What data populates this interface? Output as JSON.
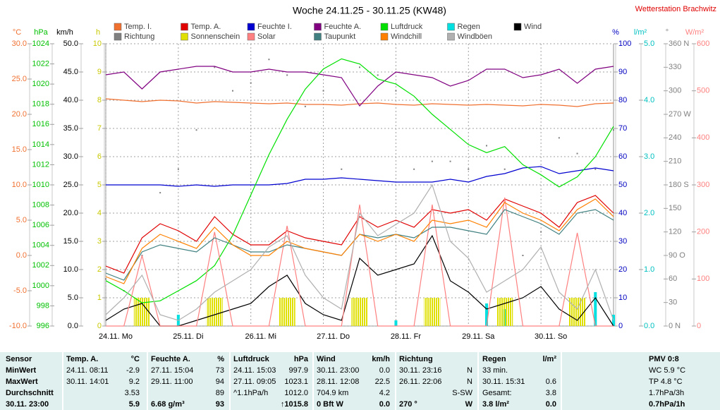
{
  "chart_data": {
    "type": "line",
    "title": "Woche 24.11.25 - 30.11.25 (KW48)",
    "annotation": "Wetterstation Brachwitz",
    "x": [
      0,
      6,
      12,
      18,
      24,
      30,
      36,
      42,
      48,
      54,
      60,
      66,
      72,
      78,
      84,
      90,
      96,
      102,
      108,
      114,
      120,
      126,
      132,
      138,
      144,
      150,
      156,
      162,
      168
    ],
    "xlim": [
      0,
      168
    ],
    "xticks": [
      {
        "value": 0,
        "label": "24.11. Mo"
      },
      {
        "value": 24,
        "label": "25.11. Di"
      },
      {
        "value": 48,
        "label": "26.11. Mi"
      },
      {
        "value": 72,
        "label": "27.11. Do"
      },
      {
        "value": 96,
        "label": "28.11. Fr"
      },
      {
        "value": 120,
        "label": "29.11. Sa"
      },
      {
        "value": 144,
        "label": "30.11. So"
      }
    ],
    "axes": [
      {
        "label": "°C",
        "color": "#f07030",
        "side": "left",
        "ylim": [
          -10,
          30
        ],
        "yticks": [
          {
            "value": -10,
            "label": "-10.0"
          },
          {
            "value": -5,
            "label": "-5.0"
          },
          {
            "value": 0,
            "label": "0.0"
          },
          {
            "value": 5,
            "label": "5.0"
          },
          {
            "value": 10,
            "label": "10.0"
          },
          {
            "value": 15,
            "label": "15.0"
          },
          {
            "value": 20,
            "label": "20.0"
          },
          {
            "value": 25,
            "label": "25.0"
          },
          {
            "value": 30,
            "label": "30.0"
          }
        ]
      },
      {
        "label": "hPa",
        "color": "#00c000",
        "side": "left",
        "ylim": [
          996,
          1024
        ],
        "yticks": [
          996,
          998,
          1000,
          1002,
          1004,
          1006,
          1008,
          1010,
          1012,
          1014,
          1016,
          1018,
          1020,
          1022,
          1024
        ]
      },
      {
        "label": "km/h",
        "color": "#000000",
        "side": "left",
        "grid": true,
        "ylim": [
          0,
          50
        ],
        "yticks": [
          {
            "value": 0,
            "label": "0.0"
          },
          {
            "value": 5,
            "label": "5.0"
          },
          {
            "value": 10,
            "label": "10.0"
          },
          {
            "value": 15,
            "label": "15.0"
          },
          {
            "value": 20,
            "label": "20.0"
          },
          {
            "value": 25,
            "label": "25.0"
          },
          {
            "value": 30,
            "label": "30.0"
          },
          {
            "value": 35,
            "label": "35.0"
          },
          {
            "value": 40,
            "label": "40.0"
          },
          {
            "value": 45,
            "label": "45.0"
          },
          {
            "value": 50,
            "label": "50.0"
          }
        ]
      },
      {
        "label": "h",
        "color": "#c8c800",
        "side": "left",
        "ylim": [
          0,
          10
        ],
        "yticks": [
          0,
          1,
          2,
          3,
          4,
          5,
          6,
          7,
          8,
          9,
          10
        ]
      },
      {
        "label": "%",
        "color": "#0000c0",
        "side": "right",
        "ylim": [
          0,
          100
        ],
        "yticks": [
          0,
          10,
          20,
          30,
          40,
          50,
          60,
          70,
          80,
          90,
          100
        ]
      },
      {
        "label": "l/m²",
        "color": "#00c0c0",
        "side": "right",
        "ylim": [
          0,
          5
        ],
        "yticks": [
          {
            "value": 0,
            "label": "0.0"
          },
          {
            "value": 1,
            "label": "1.0"
          },
          {
            "value": 2,
            "label": "2.0"
          },
          {
            "value": 3,
            "label": "3.0"
          },
          {
            "value": 4,
            "label": "4.0"
          },
          {
            "value": 5,
            "label": "5.0"
          }
        ]
      },
      {
        "label": "°",
        "color": "#808080",
        "side": "right",
        "ylim": [
          0,
          360
        ],
        "yticks": [
          {
            "value": 0,
            "label": "0 N"
          },
          30,
          60,
          {
            "value": 90,
            "label": "90 O"
          },
          120,
          150,
          {
            "value": 180,
            "label": "180 S"
          },
          210,
          240,
          {
            "value": 270,
            "label": "270 W"
          },
          300,
          330,
          {
            "value": 360,
            "label": "360 N"
          }
        ]
      },
      {
        "label": "W/m²",
        "color": "#ff8080",
        "side": "right",
        "ylim": [
          0,
          600
        ],
        "yticks": [
          0,
          100,
          200,
          300,
          400,
          500,
          600
        ]
      }
    ],
    "series": [
      {
        "name": "Temp. I.",
        "color": "#f07030",
        "axis": 0,
        "type": "line",
        "values": [
          22.2,
          22,
          21.8,
          22,
          21.9,
          21.6,
          21.8,
          21.7,
          21.6,
          21.5,
          21.6,
          21.4,
          21.4,
          21.3,
          21.5,
          21.6,
          21.4,
          21.3,
          21.5,
          21.4,
          21.3,
          21.4,
          21.3,
          21.2,
          21.4,
          21.3,
          21.1,
          21.5,
          21.6
        ]
      },
      {
        "name": "Temp. A.",
        "color": "#e00000",
        "axis": 0,
        "type": "line",
        "values": [
          -1.5,
          -2.5,
          2.5,
          4.5,
          3.5,
          2,
          5.5,
          3,
          1.5,
          1.5,
          3.5,
          2.5,
          2,
          1.5,
          5.5,
          4,
          5,
          4,
          6.5,
          6,
          6.5,
          5,
          8,
          7,
          6,
          4,
          7.5,
          8.5,
          6
        ]
      },
      {
        "name": "Feuchte I.",
        "color": "#0000d0",
        "axis": 4,
        "type": "line",
        "values": [
          50,
          50,
          50,
          50,
          49.5,
          50,
          49.5,
          50,
          50,
          50,
          50.5,
          52,
          52,
          52.5,
          52,
          51.5,
          51,
          51,
          51,
          52,
          51,
          53,
          54,
          56,
          56.5,
          54,
          55,
          56,
          55
        ]
      },
      {
        "name": "Feuchte A.",
        "color": "#800080",
        "axis": 4,
        "type": "line",
        "values": [
          89,
          90,
          84,
          90,
          91,
          92,
          92,
          90,
          90,
          91,
          90,
          90,
          89,
          88,
          78,
          85,
          90,
          89,
          88,
          85,
          87,
          91,
          91,
          88,
          89,
          91,
          86,
          91,
          92
        ]
      },
      {
        "name": "Luftdruck",
        "color": "#00e000",
        "axis": 1,
        "type": "line",
        "values": [
          1000.5,
          999.5,
          998.3,
          998.5,
          999.5,
          1000.5,
          1002,
          1005,
          1009,
          1013,
          1016.5,
          1019.5,
          1021.5,
          1022.5,
          1022,
          1020.5,
          1020,
          1018.8,
          1017,
          1015.5,
          1014,
          1013.2,
          1013.8,
          1012,
          1011,
          1009.8,
          1010.8,
          1012.8,
          1015.8
        ]
      },
      {
        "name": "Regen",
        "color": "#00e0e0",
        "axis": 5,
        "type": "bar",
        "values": [
          0,
          0,
          0,
          0,
          0.2,
          0,
          0,
          0,
          0,
          0,
          0,
          0,
          0,
          0,
          0,
          0,
          0.1,
          0,
          0,
          0,
          0,
          0.4,
          0.3,
          0,
          0,
          0,
          0,
          0.6,
          0.2
        ]
      },
      {
        "name": "Wind",
        "color": "#000000",
        "axis": 2,
        "type": "line",
        "values": [
          1,
          3,
          4,
          0,
          0,
          1,
          2,
          3,
          4,
          7,
          9,
          4,
          2,
          1,
          12,
          9,
          10,
          11,
          16,
          8,
          6,
          3,
          4,
          5,
          7,
          3,
          1,
          5,
          0
        ]
      },
      {
        "name": "Richtung",
        "color": "#808080",
        "axis": 6,
        "type": "scatter",
        "values": [
          60,
          45,
          90,
          170,
          200,
          250,
          330,
          300,
          310,
          340,
          320,
          280,
          300,
          200,
          330,
          320,
          300,
          200,
          210,
          210,
          200,
          230,
          200,
          90,
          120,
          240,
          220,
          200,
          250
        ]
      },
      {
        "name": "Sonnenschein",
        "color": "#e0e000",
        "axis": 3,
        "type": "bar",
        "hatch": true,
        "values": [
          0,
          0,
          1,
          0,
          0,
          0,
          1,
          0,
          0,
          0,
          1,
          0,
          0,
          0,
          1,
          0,
          0,
          0,
          1,
          0,
          0,
          0,
          1,
          0,
          0,
          0,
          1,
          0,
          0
        ]
      },
      {
        "name": "Solar",
        "color": "#ff8080",
        "axis": 7,
        "type": "line",
        "values": [
          0,
          0,
          150,
          0,
          0,
          0,
          200,
          0,
          0,
          0,
          213,
          0,
          0,
          0,
          258,
          0,
          0,
          0,
          258,
          0,
          0,
          0,
          273,
          0,
          0,
          0,
          198,
          0,
          0
        ]
      },
      {
        "name": "Taupunkt",
        "color": "#408080",
        "axis": 0,
        "type": "line",
        "values": [
          -2.5,
          -3.5,
          0.5,
          1.5,
          1,
          0.5,
          2.5,
          1.5,
          0.5,
          0.5,
          1.5,
          1,
          0.5,
          0,
          3,
          2.5,
          3,
          2.5,
          4,
          4,
          3.5,
          3,
          6.5,
          5.5,
          4.5,
          3,
          6,
          6.5,
          5
        ]
      },
      {
        "name": "Windchill",
        "color": "#ff8000",
        "axis": 0,
        "type": "line",
        "values": [
          -3,
          -4,
          1,
          3,
          2,
          1,
          4,
          1.5,
          0,
          0,
          2,
          1,
          0.5,
          0,
          3,
          2,
          3,
          2,
          5,
          4.5,
          5,
          4,
          7.5,
          6,
          5,
          3.5,
          6.5,
          8,
          5.5
        ]
      },
      {
        "name": "Windböen",
        "color": "#b0b0b0",
        "axis": 2,
        "type": "line",
        "values": [
          2,
          5,
          9,
          2,
          1,
          3,
          6,
          8,
          10,
          14,
          16,
          9,
          5,
          3,
          20,
          16,
          18,
          20,
          25,
          15,
          12,
          6,
          8,
          10,
          14,
          6,
          3,
          10,
          1
        ]
      }
    ]
  },
  "table": {
    "header": [
      [
        "Sensor"
      ],
      [
        "Temp. A.",
        "°C"
      ],
      [
        "Feuchte A.",
        "%"
      ],
      [
        "Luftdruck",
        "hPa"
      ],
      [
        "Wind",
        "km/h"
      ],
      [
        "Richtung",
        null
      ],
      [
        "Regen",
        "l/m²"
      ],
      [
        "PMV 0:8"
      ]
    ],
    "rows": [
      {
        "label": "MinWert",
        "cells": [
          [
            "24.11. 08:11",
            "-2.9"
          ],
          [
            "27.11. 15:04",
            "73"
          ],
          [
            "24.11. 15:03",
            "997.9"
          ],
          [
            "30.11. 23:00",
            "0.0"
          ],
          [
            "30.11. 23:16",
            "N"
          ],
          [
            "33 min.",
            null
          ],
          [
            "WC 5.9 °C"
          ]
        ]
      },
      {
        "label": "MaxWert",
        "cells": [
          [
            "30.11. 14:01",
            "9.2"
          ],
          [
            "29.11. 11:00",
            "94"
          ],
          [
            "27.11. 09:05",
            "1023.1"
          ],
          [
            "28.11. 12:08",
            "22.5"
          ],
          [
            "26.11. 22:06",
            "N"
          ],
          [
            "30.11. 15:31",
            "0.6"
          ],
          [
            "TP 4.8 °C"
          ]
        ]
      },
      {
        "label": "Durchschnitt",
        "cells": [
          [
            null,
            "3.53"
          ],
          [
            null,
            "89"
          ],
          [
            "^1.1hPa/h",
            "1012.0"
          ],
          [
            "704.9 km",
            "4.2"
          ],
          [
            null,
            "S-SW"
          ],
          [
            "Gesamt:",
            "3.8"
          ],
          [
            "1.7hPa/3h"
          ]
        ]
      },
      {
        "label": "30.11. 23:00",
        "cells": [
          [
            null,
            "5.9"
          ],
          [
            "6.68 g/m³",
            "93"
          ],
          [
            null,
            "↑1015.8"
          ],
          [
            "0 Bft W",
            "0.0"
          ],
          [
            "270 °",
            "W"
          ],
          [
            "3.8 l/m²",
            "0.0"
          ],
          [
            "0.7hPa/1h"
          ]
        ]
      }
    ]
  }
}
